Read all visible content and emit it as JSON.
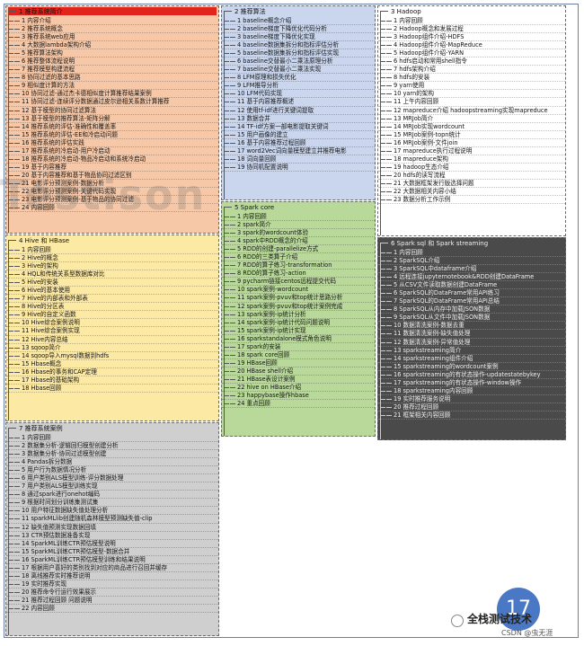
{
  "colors": {
    "orange": "#f6c8a8",
    "yellow": "#fce9a3",
    "gray": "#cfcfcf",
    "blue": "#c9d6ee",
    "green": "#b9d99a",
    "dark": "#4a4a4a",
    "red": "#e2241b",
    "badge": "#4a78c4"
  },
  "watermark": "Testison",
  "panels": {
    "intro": {
      "title": "1 推荐系统简介",
      "items": [
        "1 内容介绍",
        "2 推荐系统概念",
        "3 推荐系统web应用",
        "4 大数据lambda架构介绍",
        "5 推荐算法架构",
        "6 推荐整体流程说明",
        "7 推荐模型构建流程",
        "8 协同过滤的基本思路",
        "9 相似度计算的方法",
        "10 协同过滤-通过杰卡德相似度计算推荐结果案例",
        "11 协同过滤-连续评分数据通过皮尔逊相关系数计算推荐",
        "12 基于模型的协同过滤算法",
        "13 基于模型的推荐算法-矩阵分解",
        "14 推荐系统的评估-准确性和覆盖率",
        "15 推荐系统的评估-EE和冷启动问题",
        "16 推荐系统的评估实践",
        "17 推荐系统的冷启动-用户冷启动",
        "18 推荐系统的冷启动-物品冷启动和系统冷启动",
        "19 基于内容推荐",
        "20 基于内容推荐和基于物品协同过滤区别",
        "21 电影评分预测案例-数据分析",
        "22 电影评分预测案例-关键代码实现",
        "23 电影评分预测案例-基于物品的协同过滤",
        "24 内容回顾"
      ]
    },
    "hive": {
      "title": "4 Hive 和 HBase",
      "items": [
        "1 内容回顾",
        "2 Hive的概念",
        "3 Hive的架构",
        "4 HQL和传统关系型数据库对比",
        "5 Hive的安装",
        "6 Hive的基本使用",
        "7 Hive的内部表和外部表",
        "8 Hive的分区表",
        "9 Hive的自定义函数",
        "10 Hive综合案例说明",
        "11 Hive综合案例实现",
        "12 Hive内容总结",
        "13 sqoop简介",
        "14 sqoop导入mysql数据到hdfs",
        "15 Hbase概念",
        "16 Hbase的事务和CAP定理",
        "17 Hbase的基础架构",
        "18 Hbase回顾"
      ]
    },
    "cases": {
      "title": "7 推荐系统案例",
      "items": [
        "1 内容回顾",
        "2 数据集分析-逻辑回归模型创建分析",
        "3 数据集分析-协同过滤模型创建",
        "4 Pandas拆分数据",
        "5 用户行为数据情况分析",
        "6 用户类别ALS模型训练-评分数据处理",
        "7 用户类别ALS模型训练实现",
        "8 通过spark进行onehot编码",
        "9 根据时间划分训练集测试集",
        "10 用户特征数据缺失值处理分析",
        "11 sparkMLlib创建随机森林模型预测缺失值-clip",
        "12 缺失值预测实现数据回填",
        "13 CTR预估数据准备实现",
        "14 SparkML训练CTR预估模型说明",
        "15 SparkML训练CTR预估模型-数据合并",
        "16 SparkML训练CTR预估模型训练和结果说明",
        "17 根据用户喜好的类别找到对应的商品进行召回并缓存",
        "18 离线推荐实时推荐说明",
        "19 实时推荐实现",
        "20 推荐命令行运行效果展示",
        "21 推荐过程回顾 问题说明",
        "22 内容回顾"
      ]
    },
    "algo": {
      "title": "2 推荐算法",
      "items": [
        "1 baseline概念介绍",
        "2 baseline梯度下降优化代码分析",
        "3 baseline梯度下降优化实现",
        "4 baseline数据集拆分和指标评估分析",
        "5 baseline数据集拆分和指标评估实现",
        "6 baseline交替最小二乘法原理分析",
        "7 baseline交替最小二乘法实现",
        "8 LFM原理和损失优化",
        "9 LFM推导分析",
        "10 LFM代码实现",
        "11 基于内容推荐概述",
        "12 使用tf-idf进行关键词提取",
        "13 数据合并",
        "14 TF-idf方案一部电影提取关键词",
        "15 用户画像的建立",
        "16 基于内容推荐过程回顾",
        "17 word2Vec词向量模型建立并推荐电影",
        "18 词向量回顾",
        "19 协同机配置说明"
      ]
    },
    "spark": {
      "title": "5 Spark core",
      "items": [
        "1 内容回顾",
        "2 spark简介",
        "3 spark的wordcount体验",
        "4 spark中RDD概念的介绍",
        "5 RDD的创建-parallelize方式",
        "6 RDD的三类算子介绍",
        "7 RDD的算子练习-transformation",
        "8 RDD的算子练习-action",
        "9 pycharm链接centos远程提交代码",
        "10 spark案例-wordcount",
        "11 spark案例-pvuv和top统计思路分析",
        "12 spark案例-pvuv和top统计案例完成",
        "13 spark案例-ip统计分析",
        "14 spark案例-ip统计代码问题说明",
        "15 spark案例-ip统计实现",
        "16 sparkstandalone模式角色说明",
        "17 spark的安装",
        "18 spark core回顾",
        "19 HBase回顾",
        "20 HBase shell介绍",
        "21 HBase表设计案例",
        "22 hive on HBase介绍",
        "23 happybase操作hbase",
        "24 重点回顾"
      ]
    },
    "hadoop": {
      "title": "3 Hadoop",
      "items": [
        "1 内容回顾",
        "2 Hadoop概念和发展过程",
        "3 Hadoop组件介绍-HDFS",
        "4 Hadoop组件介绍-MapReduce",
        "5 Hadoop组件介绍-YARN",
        "6 hdfs启动和常用shell指令",
        "7 hdfs架构介绍",
        "8 hdfs的安装",
        "9 yarn使用",
        "10 yarn的架构",
        "11 上午内容回顾",
        "12 mapreduce介绍 hadoopstreaming实现mapreduce",
        "13 MRJob简介",
        "14 MRJob实现wordcount",
        "15 MRJob案例-topn统计",
        "16 MRJob案例-文件join",
        "17 mapreduce执行过程说明",
        "18 mapreduce架构",
        "19 hadoop生态介绍",
        "20 hdfs的读写流程",
        "21 大数据框架发行版选择问题",
        "22 大数据相关内容小结",
        "23 数据分析工作示例"
      ]
    },
    "sparksql": {
      "title": "6 Spark sql 和 Spark streaming",
      "items": [
        "1 内容回顾",
        "2 SparkSQL介绍",
        "3 SparkSQL中dataframe介绍",
        "4 远程连接jupyternotebook&RDD创建DataFrame",
        "5 从CSV文件读取数据创建DataFrame",
        "6 SparkSQL的DataFrame常用API练习",
        "7 SparkSQL的DataFrame常用API总结",
        "8 SparkSQL从内存中加载JSON数据",
        "9 SparkSQL从文件中加载JSON数据",
        "10 数据清洗案例-数据去重",
        "11 数据清洗案例-缺失值处理",
        "12 数据清洗案例-异常值处理",
        "13 sparkstreaming简介",
        "14 sparkstreaming组件介绍",
        "15 sparkstreaming的wordcount案例",
        "16 sparkstreaming的有状态操作-updatestatebykey",
        "17 sparkstreaming的有状态操作-window操作",
        "18 sparkstreaming内容回顾",
        "19 实时推荐服务说明",
        "20 推荐过程回顾",
        "21 框架相关内容回顾"
      ]
    }
  },
  "badge": "17",
  "brand": "全栈测试技术",
  "credit": "CSDN @虫无涯"
}
